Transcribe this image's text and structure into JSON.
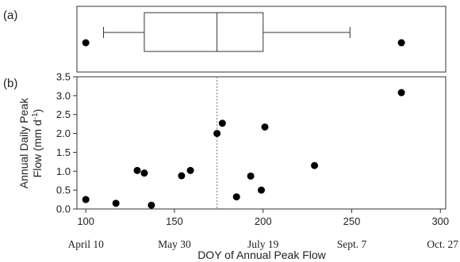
{
  "chart_data": [
    {
      "type": "boxplot",
      "panel_label": "(a)",
      "min": 110,
      "q1": 133,
      "median": 174,
      "q3": 200,
      "max": 249,
      "outliers": [
        100,
        278
      ],
      "xlim": [
        95,
        303
      ]
    },
    {
      "type": "scatter",
      "panel_label": "(b)",
      "xlabel": "DOY of Annual Peak Flow",
      "ylabel": "Annual Daily Peak Flow (mm d⁻¹)",
      "ylabel_line1": "Annual Daily Peak",
      "ylabel_line2_prefix": "Flow (mm d",
      "ylabel_superscript": "-1",
      "ylabel_line2_suffix": ")",
      "xlim": [
        95,
        303
      ],
      "ylim": [
        0,
        3.5
      ],
      "xticks": [
        100,
        150,
        200,
        250,
        300
      ],
      "yticks": [
        "0.0",
        "0.5",
        "1.0",
        "1.5",
        "2.0",
        "2.5",
        "3.0",
        "3.5"
      ],
      "date_labels": [
        {
          "x": 100,
          "label": "April 10"
        },
        {
          "x": 150,
          "label": "May 30"
        },
        {
          "x": 200,
          "label": "July 19"
        },
        {
          "x": 250,
          "label": "Sept. 7"
        },
        {
          "x": 300,
          "label": "Oct. 27"
        }
      ],
      "median_line_x": 174,
      "points": [
        {
          "x": 100,
          "y": 0.25
        },
        {
          "x": 117,
          "y": 0.15
        },
        {
          "x": 129,
          "y": 1.02
        },
        {
          "x": 133,
          "y": 0.95
        },
        {
          "x": 137,
          "y": 0.1
        },
        {
          "x": 154,
          "y": 0.88
        },
        {
          "x": 159,
          "y": 1.02
        },
        {
          "x": 174,
          "y": 2.0
        },
        {
          "x": 177,
          "y": 2.27
        },
        {
          "x": 185,
          "y": 0.32
        },
        {
          "x": 193,
          "y": 0.87
        },
        {
          "x": 199,
          "y": 0.5
        },
        {
          "x": 201,
          "y": 2.17
        },
        {
          "x": 229,
          "y": 1.15
        },
        {
          "x": 278,
          "y": 3.08
        }
      ]
    }
  ]
}
